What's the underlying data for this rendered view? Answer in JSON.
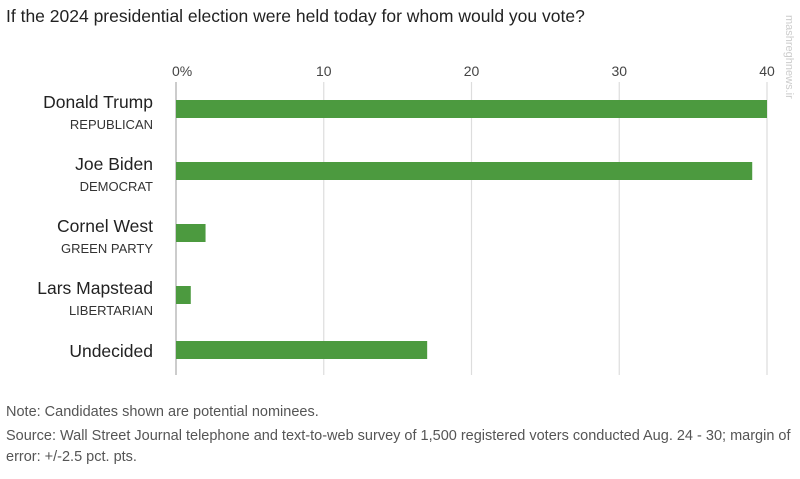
{
  "chart_data": {
    "type": "bar",
    "orientation": "horizontal",
    "title": "If the 2024 presidential election were held today for whom would you vote?",
    "categories": [
      {
        "name": "Donald Trump",
        "party": "REPUBLICAN"
      },
      {
        "name": "Joe Biden",
        "party": "DEMOCRAT"
      },
      {
        "name": "Cornel West",
        "party": "GREEN PARTY"
      },
      {
        "name": "Lars Mapstead",
        "party": "LIBERTARIAN"
      },
      {
        "name": "Undecided",
        "party": ""
      }
    ],
    "values": [
      40,
      39,
      2,
      1,
      17
    ],
    "xlim": [
      0,
      40
    ],
    "ticks": [
      "0%",
      "10",
      "20",
      "30",
      "40"
    ],
    "tick_values": [
      0,
      10,
      20,
      30,
      40
    ],
    "grid": true,
    "xlabel": "",
    "ylabel": "",
    "bar_color": "#4c9a3f"
  },
  "notes": {
    "note": "Note: Candidates shown are potential nominees.",
    "source": "Source: Wall Street Journal telephone and text-to-web survey of 1,500 registered voters conducted Aug. 24 - 30; margin of error: +/-2.5 pct. pts."
  },
  "watermark": "mashreghnews.ir"
}
